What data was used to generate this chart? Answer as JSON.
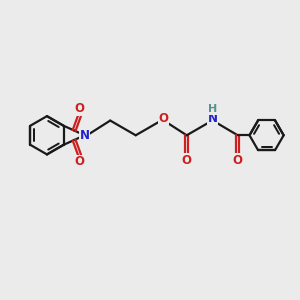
{
  "bg_color": "#ebebeb",
  "bond_color": "#1a1a1a",
  "N_color": "#2222cc",
  "O_color": "#cc2020",
  "H_color": "#5a9090",
  "line_width": 1.6,
  "font_size": 8.5,
  "fig_w": 3.0,
  "fig_h": 3.0,
  "dpi": 100,
  "xlim": [
    0.0,
    10.0
  ],
  "ylim": [
    -1.5,
    5.5
  ]
}
